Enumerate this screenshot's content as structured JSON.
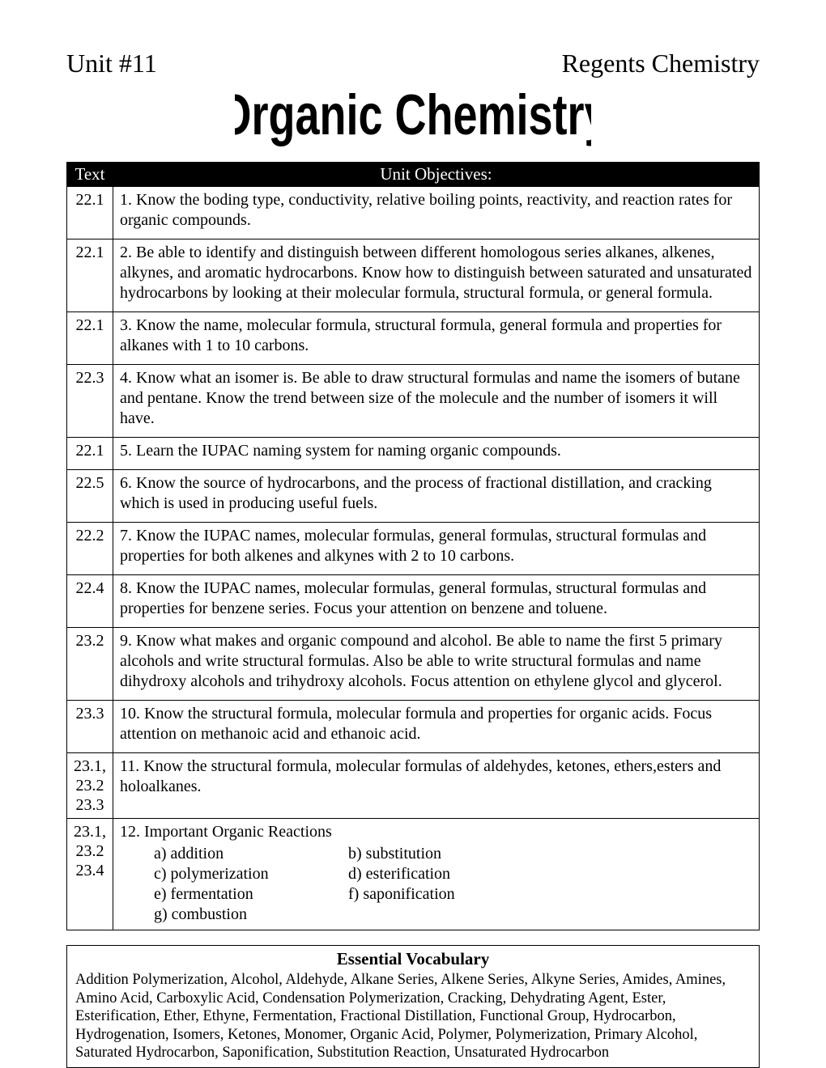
{
  "header": {
    "unit": "Unit #11",
    "course": "Regents Chemistry",
    "title": "Organic Chemistry"
  },
  "table_headers": {
    "text": "Text",
    "objectives": "Unit Objectives:"
  },
  "objectives": [
    {
      "ref": "22.1",
      "text": "1.  Know the boding type, conductivity, relative boiling points, reactivity, and reaction rates for organic compounds."
    },
    {
      "ref": "22.1",
      "text": "2.  Be able to identify and distinguish between different homologous series alkanes, alkenes, alkynes, and aromatic hydrocarbons.  Know how to distinguish between saturated and unsaturated hydrocarbons by looking at their molecular formula, structural formula, or general formula."
    },
    {
      "ref": "22.1",
      "text": "3.  Know the name, molecular formula, structural formula, general formula and properties for alkanes with 1 to 10 carbons."
    },
    {
      "ref": "22.3",
      "text": "4.  Know what an isomer is.  Be able to draw structural formulas and name the isomers of butane and pentane.  Know the trend between size of the molecule and the number of isomers it will have."
    },
    {
      "ref": "22.1",
      "text": "5.  Learn the IUPAC naming system for naming organic compounds."
    },
    {
      "ref": "22.5",
      "text": "6.  Know the source of hydrocarbons, and the process of fractional distillation, and cracking which is used in producing useful fuels."
    },
    {
      "ref": "22.2",
      "text": "7.  Know the IUPAC names, molecular formulas, general formulas, structural formulas and properties for both alkenes and alkynes with 2 to 10 carbons."
    },
    {
      "ref": "22.4",
      "text": "8.  Know the IUPAC names, molecular formulas, general formulas, structural formulas and properties for benzene series.  Focus your attention on benzene and toluene."
    },
    {
      "ref": "23.2",
      "text": "9.  Know what makes and organic compound and alcohol.  Be able to name the first 5 primary alcohols and write structural formulas.  Also be able to write structural formulas and name dihydroxy alcohols and trihydroxy alcohols.  Focus attention on ethylene glycol and glycerol."
    },
    {
      "ref": "23.3",
      "text": "10.  Know the structural formula, molecular formula and properties for organic acids.  Focus attention on methanoic acid and ethanoic acid."
    },
    {
      "ref": "23.1, 23.2 23.3",
      "text": "11.  Know the structural formula, molecular formulas of aldehydes, ketones, ethers,esters and holoalkanes."
    }
  ],
  "reactions_row": {
    "ref": "23.1, 23.2 23.4",
    "title": "12. Important Organic Reactions",
    "items": [
      [
        "a) addition",
        "b) substitution"
      ],
      [
        "c) polymerization",
        "d) esterification"
      ],
      [
        "e) fermentation",
        "f) saponification"
      ],
      [
        "g) combustion",
        ""
      ]
    ]
  },
  "vocab": {
    "title": "Essential Vocabulary",
    "body": "Addition Polymerization, Alcohol, Aldehyde, Alkane Series, Alkene Series, Alkyne Series, Amides, Amines, Amino Acid, Carboxylic Acid, Condensation Polymerization, Cracking, Dehydrating Agent, Ester, Esterification, Ether, Ethyne, Fermentation, Fractional Distillation, Functional Group, Hydrocarbon, Hydrogenation, Isomers, Ketones, Monomer, Organic Acid, Polymer, Polymerization, Primary Alcohol, Saturated Hydrocarbon, Saponification, Substitution Reaction, Unsaturated Hydrocarbon"
  },
  "style": {
    "title_fill": "#000000",
    "title_font_family": "Impact, 'Arial Black', sans-serif"
  }
}
